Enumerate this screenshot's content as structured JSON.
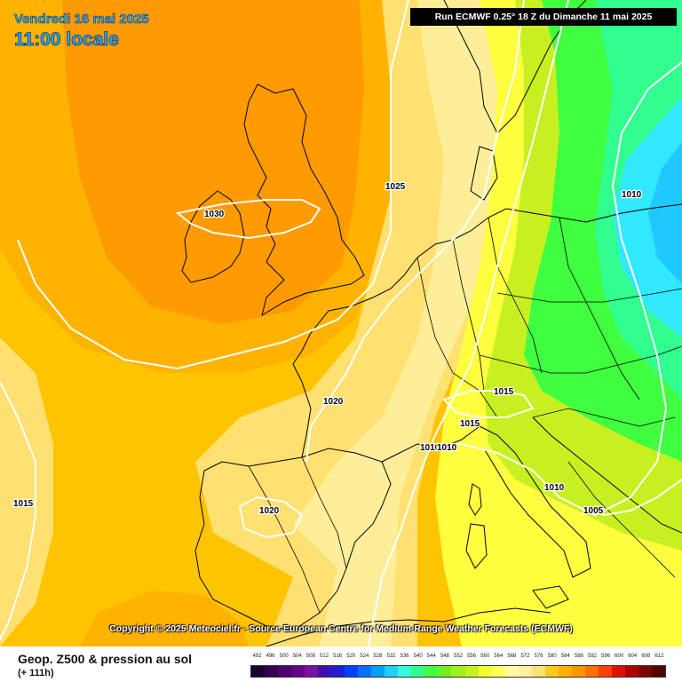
{
  "header": {
    "date": "Vendredi 16 mai 2025",
    "local_time": "11:00 locale",
    "run_info": "Run ECMWF 0.25° 18 Z du Dimanche 11 mai 2025"
  },
  "copyright": "Copyright © 2025 Meteociel.fr - Source European Centre for Medium-Range Weather Forecasts (ECMWF)",
  "footer": {
    "product": "Geop. Z500 & pression au sol",
    "lead_time": "(+ 111h)"
  },
  "isobars": {
    "ireland": "1030",
    "north_sea": "1025",
    "baltic": "1010",
    "bay_of_biscay": "1020",
    "atlantic_west": "1015",
    "spain": "1020",
    "alps": "1015",
    "switzerland": "1015",
    "gulf_of_lion": "1010",
    "gulf_of_lion_b": "1010",
    "adriatic": "1010",
    "balkans": "1005"
  },
  "legend": {
    "labels": [
      "492",
      "496",
      "500",
      "504",
      "508",
      "512",
      "516",
      "520",
      "524",
      "528",
      "532",
      "536",
      "540",
      "544",
      "548",
      "552",
      "556",
      "560",
      "564",
      "568",
      "572",
      "576",
      "580",
      "584",
      "588",
      "592",
      "596",
      "600",
      "604",
      "608",
      "612"
    ],
    "colors": [
      "#1c0030",
      "#350052",
      "#4d006e",
      "#65008a",
      "#7d10a0",
      "#4010b0",
      "#2020d0",
      "#0040ff",
      "#0070ff",
      "#00a0ff",
      "#20d0ff",
      "#30ffd8",
      "#30ff90",
      "#40ff40",
      "#70f020",
      "#a0f020",
      "#c8f020",
      "#f0ff30",
      "#ffff60",
      "#ffffa0",
      "#fff0a0",
      "#ffe070",
      "#ffc820",
      "#ffb000",
      "#ff9600",
      "#ff7000",
      "#ff4000",
      "#e01000",
      "#b00000",
      "#800000",
      "#500000"
    ]
  },
  "colors": {
    "high_core": "#ff9a00",
    "high_outer": "#ffb300",
    "mid_orange": "#ffc400",
    "light_yellow": "#ffe070",
    "pale_yellow": "#ffee99",
    "yellow": "#ffff40",
    "yellow_green": "#c8f020",
    "green": "#40ff40",
    "aqua_green": "#30ff90",
    "cyan": "#30e8ff",
    "blue": "#20c8ff",
    "isobar": "#ffffff",
    "coastline": "#000000"
  }
}
